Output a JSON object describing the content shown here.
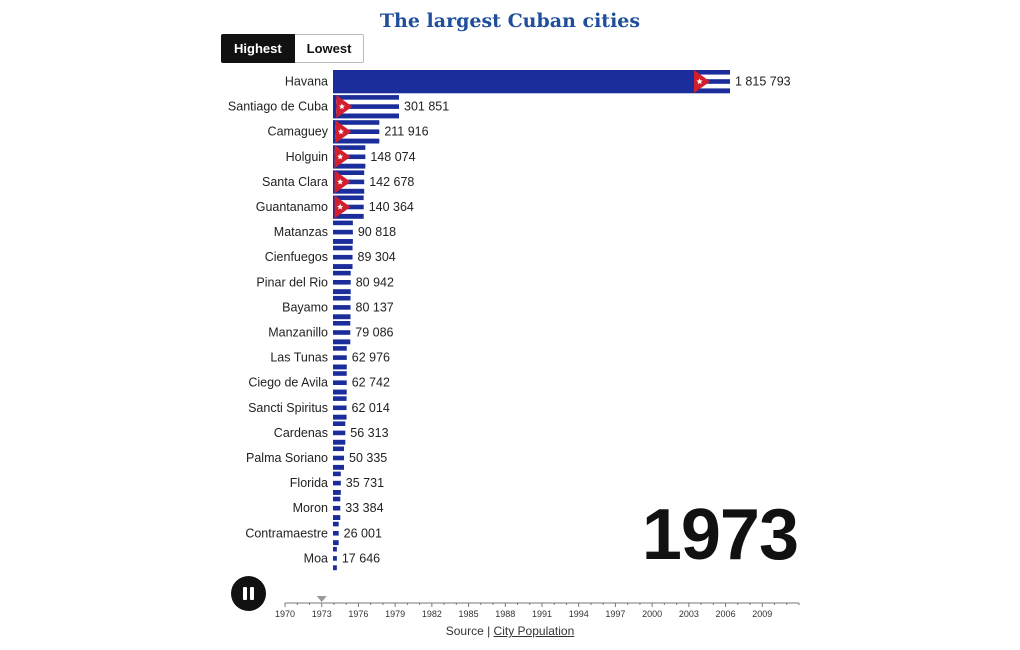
{
  "title": "The largest Cuban cities",
  "toggle": {
    "highest_label": "Highest",
    "lowest_label": "Lowest"
  },
  "year_display": "1973",
  "source": {
    "prefix": "Source | ",
    "link_label": "City Population"
  },
  "timeline": {
    "ticks": [
      "1970",
      "1973",
      "1976",
      "1979",
      "1982",
      "1985",
      "1988",
      "1991",
      "1994",
      "1997",
      "2000",
      "2003",
      "2006",
      "2009"
    ],
    "start": 1970,
    "end": 2012,
    "current": 1973
  },
  "colors": {
    "flag_blue": "#1b2d9a",
    "flag_white": "#ffffff",
    "flag_red": "#d21f2e",
    "title": "#1f4e9a"
  },
  "chart_data": {
    "type": "bar",
    "orientation": "horizontal",
    "title": "The largest Cuban cities",
    "categories": [
      "Havana",
      "Santiago de Cuba",
      "Camaguey",
      "Holguin",
      "Santa Clara",
      "Guantanamo",
      "Matanzas",
      "Cienfuegos",
      "Pinar del Rio",
      "Bayamo",
      "Manzanillo",
      "Las Tunas",
      "Ciego de Avila",
      "Sancti Spiritus",
      "Cardenas",
      "Palma Soriano",
      "Florida",
      "Moron",
      "Contramaestre",
      "Moa"
    ],
    "values": [
      1815793,
      301851,
      211916,
      148074,
      142678,
      140364,
      90818,
      89304,
      80942,
      80137,
      79086,
      62976,
      62742,
      62014,
      56313,
      50335,
      35731,
      33384,
      26001,
      17646
    ],
    "value_labels": [
      "1 815 793",
      "301 851",
      "211 916",
      "148 074",
      "142 678",
      "140 364",
      "90 818",
      "89 304",
      "80 942",
      "80 137",
      "79 086",
      "62 976",
      "62 742",
      "62 014",
      "56 313",
      "50 335",
      "35 731",
      "33 384",
      "26 001",
      "17 646"
    ],
    "xlim": [
      0,
      1815793
    ],
    "year": "1973"
  }
}
